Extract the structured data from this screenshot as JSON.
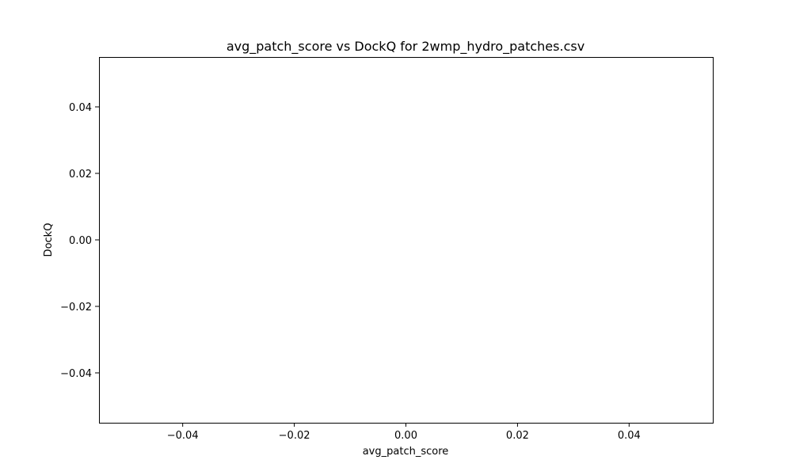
{
  "chart_data": {
    "type": "scatter",
    "title": "avg_patch_score vs DockQ for 2wmp_hydro_patches.csv",
    "xlabel": "avg_patch_score",
    "ylabel": "DockQ",
    "x": [],
    "y": [],
    "xlim": [
      -0.055,
      0.055
    ],
    "ylim": [
      -0.055,
      0.055
    ],
    "xticks": [
      -0.04,
      -0.02,
      0.0,
      0.02,
      0.04
    ],
    "yticks": [
      -0.04,
      -0.02,
      0.0,
      0.02,
      0.04
    ],
    "xtick_labels": [
      "−0.04",
      "−0.02",
      "0.00",
      "0.02",
      "0.04"
    ],
    "ytick_labels": [
      "−0.04",
      "−0.02",
      "0.00",
      "0.02",
      "0.04"
    ],
    "grid": false,
    "legend": false
  }
}
